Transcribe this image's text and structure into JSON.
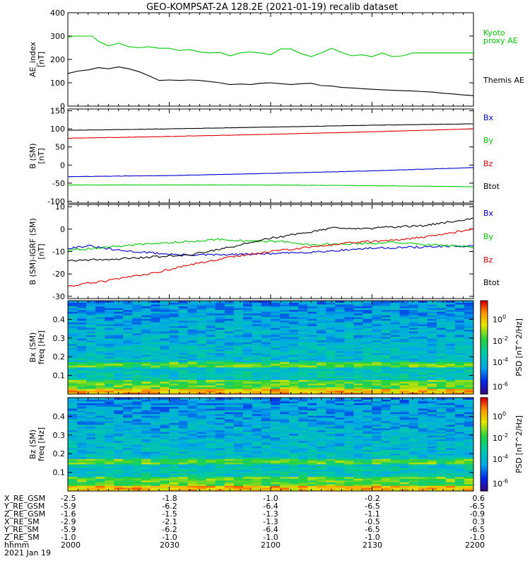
{
  "title": "GEO-KOMPSAT-2A 128.2E (2021-01-19) recalib dataset",
  "colors": {
    "black": "#000000",
    "red": "#e00000",
    "green": "#00cc00",
    "blue": "#0000d0"
  },
  "time_ticks": [
    "2000",
    "2030",
    "2100",
    "2130",
    "2200"
  ],
  "chart_data": [
    {
      "type": "line",
      "ylabel": [
        "AE_index",
        "[nT]"
      ],
      "ylim": [
        0,
        400
      ],
      "yticks": [
        0,
        100,
        200,
        300,
        400
      ],
      "x": "minutes after 2000 UT",
      "series": [
        {
          "name": "Kyoto proxy AE",
          "label_lines": [
            "Kyoto",
            "proxy AE"
          ],
          "color": "#00cc00",
          "points": [
            [
              0,
              295
            ],
            [
              3,
              300
            ],
            [
              12,
              300
            ],
            [
              15,
              278
            ],
            [
              20,
              258
            ],
            [
              25,
              270
            ],
            [
              30,
              255
            ],
            [
              35,
              250
            ],
            [
              40,
              255
            ],
            [
              45,
              248
            ],
            [
              50,
              248
            ],
            [
              55,
              238
            ],
            [
              60,
              242
            ],
            [
              65,
              232
            ],
            [
              70,
              228
            ],
            [
              75,
              230
            ],
            [
              80,
              215
            ],
            [
              85,
              228
            ],
            [
              90,
              232
            ],
            [
              95,
              228
            ],
            [
              100,
              220
            ],
            [
              105,
              245
            ],
            [
              110,
              245
            ],
            [
              115,
              225
            ],
            [
              120,
              212
            ],
            [
              125,
              228
            ],
            [
              130,
              248
            ],
            [
              135,
              230
            ],
            [
              140,
              215
            ],
            [
              145,
              220
            ],
            [
              150,
              212
            ],
            [
              155,
              228
            ],
            [
              160,
              212
            ],
            [
              165,
              215
            ],
            [
              170,
              228
            ],
            [
              175,
              228
            ],
            [
              180,
              228
            ],
            [
              190,
              228
            ],
            [
              200,
              228
            ]
          ]
        },
        {
          "name": "Themis AE",
          "label_lines": [
            "Themis AE"
          ],
          "color": "#000000",
          "points": [
            [
              0,
              140
            ],
            [
              5,
              150
            ],
            [
              10,
              155
            ],
            [
              15,
              165
            ],
            [
              20,
              160
            ],
            [
              25,
              168
            ],
            [
              30,
              160
            ],
            [
              35,
              148
            ],
            [
              40,
              130
            ],
            [
              45,
              110
            ],
            [
              50,
              112
            ],
            [
              55,
              110
            ],
            [
              60,
              112
            ],
            [
              65,
              110
            ],
            [
              70,
              105
            ],
            [
              75,
              100
            ],
            [
              80,
              92
            ],
            [
              85,
              95
            ],
            [
              90,
              92
            ],
            [
              95,
              98
            ],
            [
              100,
              100
            ],
            [
              105,
              96
            ],
            [
              110,
              92
            ],
            [
              115,
              96
            ],
            [
              120,
              98
            ],
            [
              125,
              88
            ],
            [
              130,
              86
            ],
            [
              135,
              80
            ],
            [
              140,
              78
            ],
            [
              145,
              75
            ],
            [
              150,
              72
            ],
            [
              155,
              70
            ],
            [
              160,
              68
            ],
            [
              165,
              66
            ],
            [
              170,
              65
            ],
            [
              175,
              62
            ],
            [
              180,
              60
            ],
            [
              185,
              55
            ],
            [
              190,
              52
            ],
            [
              195,
              48
            ],
            [
              200,
              45
            ]
          ]
        }
      ]
    },
    {
      "type": "line",
      "ylabel": [
        "B (SM)",
        "[nT]"
      ],
      "ylim": [
        -105,
        155
      ],
      "yticks": [
        -100,
        -50,
        0,
        50,
        100,
        150
      ],
      "series": [
        {
          "name": "Bx",
          "color": "#0000d0",
          "points": [
            [
              0,
              -32
            ],
            [
              50,
              -29
            ],
            [
              100,
              -23
            ],
            [
              150,
              -16
            ],
            [
              200,
              -7
            ]
          ]
        },
        {
          "name": "By",
          "color": "#00cc00",
          "points": [
            [
              0,
              -55
            ],
            [
              50,
              -55
            ],
            [
              100,
              -55
            ],
            [
              150,
              -57
            ],
            [
              200,
              -60
            ]
          ]
        },
        {
          "name": "Bz",
          "color": "#e00000",
          "points": [
            [
              0,
              74
            ],
            [
              50,
              79
            ],
            [
              100,
              85
            ],
            [
              150,
              92
            ],
            [
              200,
              100
            ]
          ]
        },
        {
          "name": "Btot",
          "color": "#000000",
          "points": [
            [
              0,
              96
            ],
            [
              50,
              100
            ],
            [
              100,
              105
            ],
            [
              150,
              110
            ],
            [
              200,
              114
            ]
          ]
        }
      ]
    },
    {
      "type": "line",
      "ylabel": [
        "B (SM)-IGRF (SM)",
        "[nT]"
      ],
      "ylim": [
        -31,
        11
      ],
      "yticks": [
        -30,
        -20,
        -10,
        0,
        10
      ],
      "series": [
        {
          "name": "Bx",
          "color": "#0000d0",
          "points": [
            [
              0,
              -8.5
            ],
            [
              10,
              -7.5
            ],
            [
              25,
              -9.5
            ],
            [
              40,
              -10.5
            ],
            [
              55,
              -11.5
            ],
            [
              75,
              -11.5
            ],
            [
              100,
              -11
            ],
            [
              125,
              -10
            ],
            [
              150,
              -8.5
            ],
            [
              175,
              -8
            ],
            [
              200,
              -7.5
            ]
          ]
        },
        {
          "name": "By",
          "color": "#00cc00",
          "points": [
            [
              0,
              -9.5
            ],
            [
              20,
              -8
            ],
            [
              40,
              -6.5
            ],
            [
              60,
              -5.5
            ],
            [
              75,
              -4.5
            ],
            [
              90,
              -5.5
            ],
            [
              105,
              -5.5
            ],
            [
              120,
              -7
            ],
            [
              140,
              -6.5
            ],
            [
              160,
              -6
            ],
            [
              180,
              -7
            ],
            [
              200,
              -8
            ]
          ]
        },
        {
          "name": "Bz",
          "color": "#e00000",
          "points": [
            [
              0,
              -25.5
            ],
            [
              20,
              -23
            ],
            [
              40,
              -20
            ],
            [
              60,
              -16
            ],
            [
              80,
              -12.5
            ],
            [
              100,
              -10
            ],
            [
              120,
              -8
            ],
            [
              140,
              -6
            ],
            [
              160,
              -5
            ],
            [
              180,
              -3
            ],
            [
              200,
              0
            ]
          ]
        },
        {
          "name": "Btot",
          "color": "#000000",
          "points": [
            [
              0,
              -14
            ],
            [
              20,
              -13.5
            ],
            [
              40,
              -12.5
            ],
            [
              60,
              -11.5
            ],
            [
              80,
              -8
            ],
            [
              100,
              -4
            ],
            [
              115,
              -2
            ],
            [
              130,
              0.5
            ],
            [
              145,
              0
            ],
            [
              160,
              1
            ],
            [
              175,
              1.5
            ],
            [
              190,
              3.5
            ],
            [
              200,
              5
            ]
          ]
        }
      ]
    },
    {
      "type": "heatmap",
      "panel": "Bx (SM)",
      "ylabel": [
        "Bx (SM)",
        "freq [Hz]"
      ],
      "ylim": [
        0,
        0.5
      ],
      "yticks": [
        0.1,
        0.2,
        0.3,
        0.4
      ],
      "colorbar": {
        "label": "PSD [nT^2/Hz]",
        "ticks": [
          "10^0",
          "10^-2",
          "10^-4",
          "10^-6"
        ]
      }
    },
    {
      "type": "heatmap",
      "panel": "Bz (SM)",
      "ylabel": [
        "Bz (SM)",
        "freq [Hz]"
      ],
      "ylim": [
        0,
        0.5
      ],
      "yticks": [
        0.1,
        0.2,
        0.3,
        0.4
      ],
      "colorbar": {
        "label": "PSD [nT^2/Hz]",
        "ticks": [
          "10^0",
          "10^-2",
          "10^-4",
          "10^-6"
        ]
      }
    }
  ],
  "ephemeris": {
    "rows": [
      {
        "label": "X_RE_GSM",
        "values": [
          "-2.5",
          "-1.8",
          "-1.0",
          "-0.2",
          "0.6"
        ]
      },
      {
        "label": "Y_RE_GSM",
        "values": [
          "-5.9",
          "-6.2",
          "-6.4",
          "-6.5",
          "-6.5"
        ]
      },
      {
        "label": "Z_RE_GSM",
        "values": [
          "-1.6",
          "-1.5",
          "-1.3",
          "-1.1",
          "-0.9"
        ]
      },
      {
        "label": "X_RE_SM",
        "values": [
          "-2.9",
          "-2.1",
          "-1.3",
          "-0.5",
          "0.3"
        ]
      },
      {
        "label": "Y_RE_SM",
        "values": [
          "-5.9",
          "-6.2",
          "-6.4",
          "-6.5",
          "-6.5"
        ]
      },
      {
        "label": "Z_RE_SM",
        "values": [
          "-1.0",
          "-1.0",
          "-1.0",
          "-1.0",
          "-1.0"
        ]
      },
      {
        "label": "hhmm",
        "values": [
          "2000",
          "2030",
          "2100",
          "2130",
          "2200"
        ]
      }
    ],
    "date": "2021 Jan 19"
  }
}
